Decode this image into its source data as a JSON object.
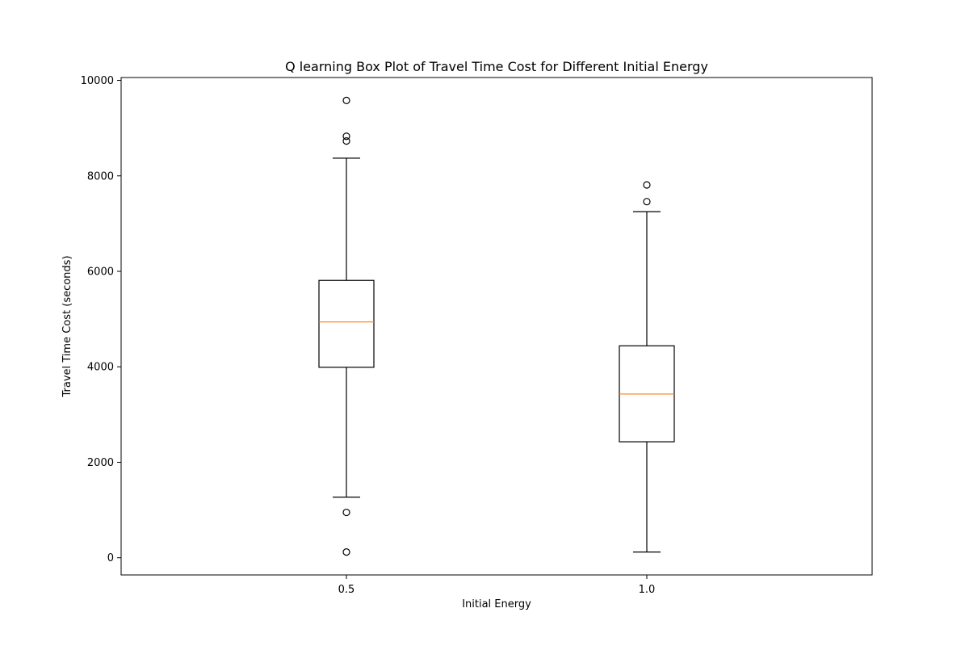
{
  "chart_data": {
    "type": "box",
    "title": "Q learning Box Plot of Travel Time Cost for Different Initial Energy",
    "xlabel": "Initial Energy",
    "ylabel": "Travel Time Cost (seconds)",
    "categories": [
      "0.5",
      "1.0"
    ],
    "ylim": [
      -360,
      10060
    ],
    "yticks": [
      0,
      2000,
      4000,
      6000,
      8000,
      10000
    ],
    "grid": false,
    "boxes": [
      {
        "category": "0.5",
        "whisker_low": 1270,
        "q1": 3990,
        "median": 4940,
        "q3": 5810,
        "whisker_high": 8370,
        "outliers": [
          9580,
          8830,
          8730,
          950,
          120
        ]
      },
      {
        "category": "1.0",
        "whisker_low": 120,
        "q1": 2430,
        "median": 3430,
        "q3": 4440,
        "whisker_high": 7250,
        "outliers": [
          7810,
          7460
        ]
      }
    ],
    "colors": {
      "box": "#000000",
      "median": "#ff7f0e",
      "whisker": "#000000",
      "outlier": "#000000"
    }
  }
}
